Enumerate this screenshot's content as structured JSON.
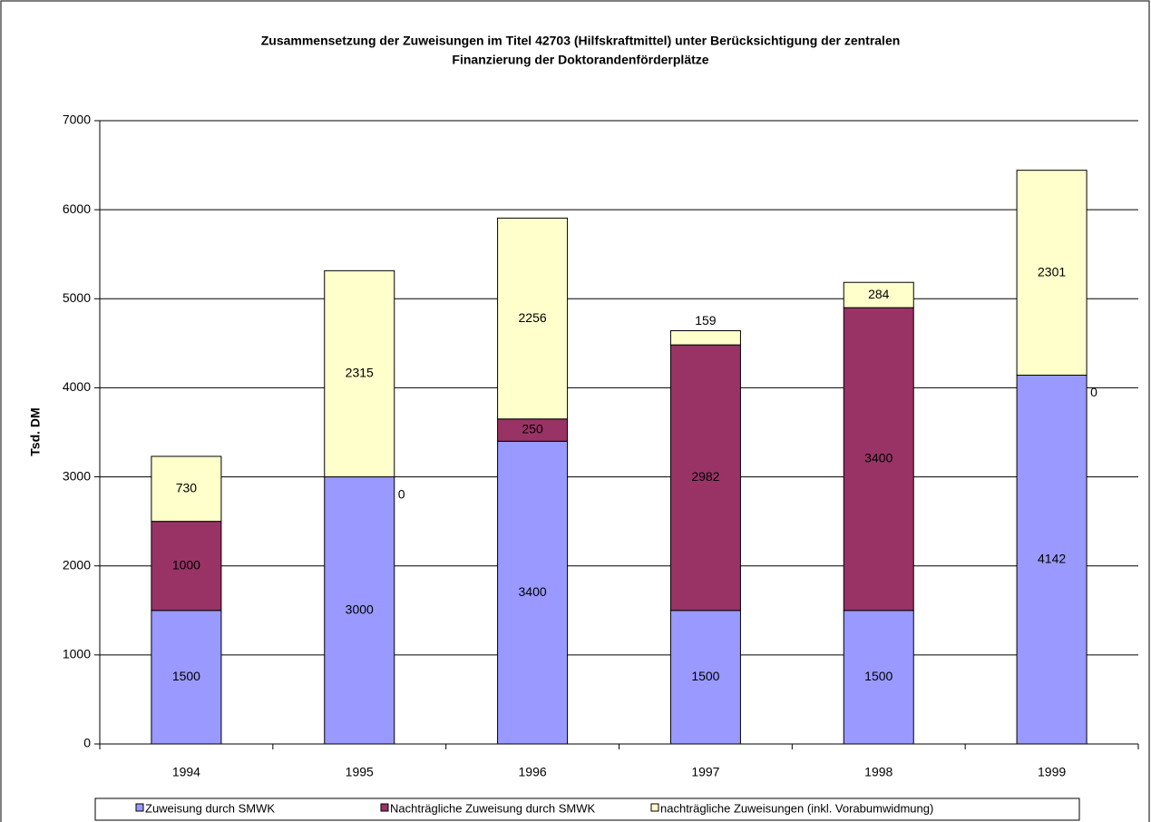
{
  "chart_data": {
    "type": "stacked_bar",
    "title": [
      "Zusammensetzung der Zuweisungen im Titel 42703 (Hilfskraftmittel) unter Berücksichtigung der zentralen",
      "Finanzierung der Doktorandenförderplätze"
    ],
    "y_label": "Tsd. DM",
    "categories": [
      "1994",
      "1995",
      "1996",
      "1997",
      "1998",
      "1999"
    ],
    "series": [
      {
        "name": "Zuweisung durch SMWK",
        "color": "#9999ff",
        "values": [
          1500,
          3000,
          3400,
          1500,
          1500,
          4142
        ]
      },
      {
        "name": "Nachträgliche Zuweisung durch SMWK",
        "color": "#993366",
        "values": [
          1000,
          0,
          250,
          2982,
          3400,
          0
        ]
      },
      {
        "name": "nachträgliche Zuweisungen (inkl. Vorabumwidmung)",
        "color": "#ffffcc",
        "values": [
          730,
          2315,
          2256,
          159,
          284,
          2301
        ]
      }
    ],
    "ylim": [
      0,
      7000
    ],
    "yticks": [
      0,
      1000,
      2000,
      3000,
      4000,
      5000,
      6000,
      7000
    ],
    "grid": true,
    "legend": "bottom"
  }
}
